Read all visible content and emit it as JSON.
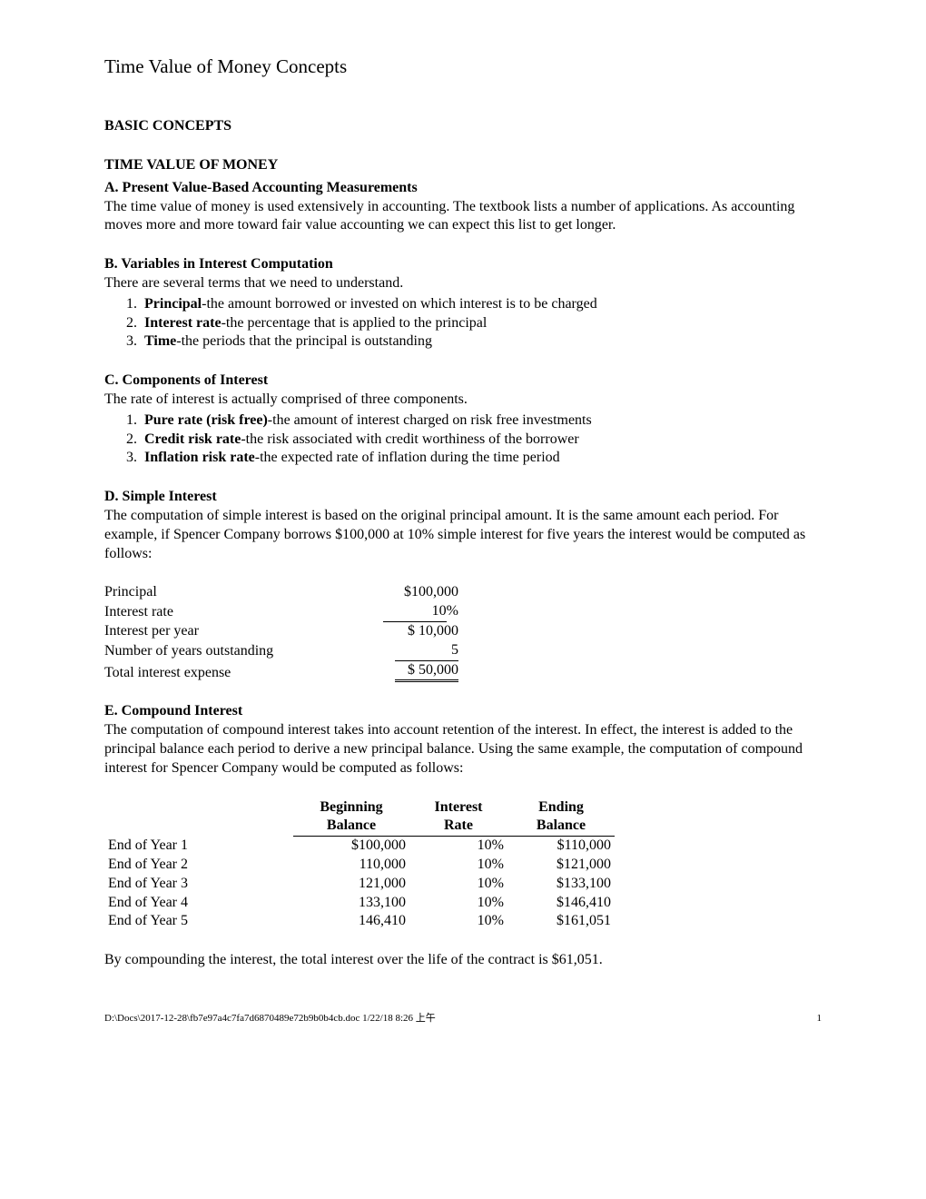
{
  "page_title": "Time Value of Money Concepts",
  "heading_basic": "BASIC CONCEPTS",
  "heading_tvm": "TIME VALUE OF MONEY",
  "sec_a": {
    "title": "A.  Present Value-Based Accounting Measurements",
    "text": "The time value of money is used extensively in accounting.  The textbook lists a number of applications.  As accounting moves more and more toward fair value accounting we can expect this list to get longer."
  },
  "sec_b": {
    "title": "B.  Variables in Interest Computation",
    "intro": "There are several terms that we need to understand.",
    "items": [
      {
        "term": "Principal",
        "rest": "-the amount borrowed or invested on which interest is to be charged"
      },
      {
        "term": "Interest rate",
        "rest": "-the percentage that is applied to the principal"
      },
      {
        "term": "Time",
        "rest": "-the periods that the principal is outstanding"
      }
    ]
  },
  "sec_c": {
    "title": "C.  Components of Interest",
    "intro": "The rate of interest is actually comprised of three components.",
    "items": [
      {
        "term": "Pure rate (risk free)",
        "rest": "-the amount of interest charged on risk free investments"
      },
      {
        "term": "Credit risk rate",
        "rest": "-the risk associated with credit worthiness of the borrower"
      },
      {
        "term": "Inflation risk rate",
        "rest": "-the expected rate of inflation during the time period"
      }
    ]
  },
  "sec_d": {
    "title": "D.  Simple Interest",
    "text": "The computation of simple interest is based on the original principal amount.  It is the same amount each period.  For example, if Spencer Company borrows $100,000 at 10% simple interest for five years the interest would be computed as follows:",
    "rows": [
      {
        "label": "Principal",
        "value": "$100,000",
        "style": "plain"
      },
      {
        "label": "Interest rate",
        "value": "10",
        "style": "single",
        "suffix": "%"
      },
      {
        "label": "Interest per year",
        "value": "$  10,000",
        "style": "plain"
      },
      {
        "label": "Number of years outstanding",
        "value": "5",
        "style": "single"
      },
      {
        "label": "Total interest expense",
        "value": "$  50,000",
        "style": "double"
      }
    ]
  },
  "sec_e": {
    "title": "E.  Compound Interest",
    "text": "The computation of compound interest takes into account retention of the interest.  In effect, the interest is added to the principal balance each period to derive a new principal balance.  Using the same example, the computation of compound interest for Spencer Company would be computed as follows:",
    "headers": {
      "begin": "Beginning\nBalance",
      "rate": "Interest\nRate",
      "end": "Ending\nBalance"
    },
    "rows": [
      {
        "label": "End of Year 1",
        "begin": "$100,000",
        "rate": "10%",
        "end": "$110,000"
      },
      {
        "label": "End of Year 2",
        "begin": "110,000",
        "rate": "10%",
        "end": "$121,000"
      },
      {
        "label": "End of Year 3",
        "begin": "121,000",
        "rate": "10%",
        "end": "$133,100"
      },
      {
        "label": "End of Year 4",
        "begin": "133,100",
        "rate": "10%",
        "end": "$146,410"
      },
      {
        "label": "End of Year 5",
        "begin": "146,410",
        "rate": "10%",
        "end": "$161,051"
      }
    ],
    "closing": "By compounding the interest, the total interest over the life of the contract is $61,051."
  },
  "footer": {
    "path": "D:\\Docs\\2017-12-28\\fb7e97a4c7fa7d6870489e72b9b0b4cb.doc 1/22/18 8:26 上午",
    "page": "1"
  }
}
